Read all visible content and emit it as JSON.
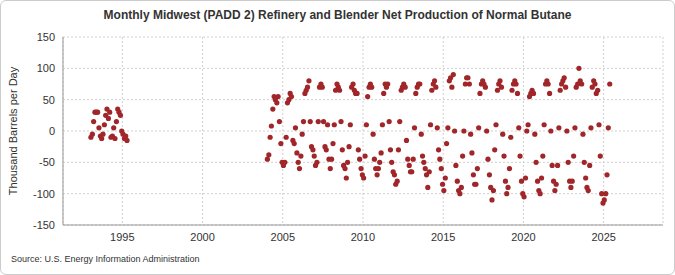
{
  "chart_data": {
    "type": "scatter",
    "title": "Monthly Midwest (PADD 2) Refinery and Blender Net Production of Normal Butane",
    "y_label": "Thousand Barrels per Day",
    "source": "Source: U.S. Energy Information Administration",
    "color": "#a0262a",
    "marker": "circle",
    "grid": true,
    "xlim": [
      1991.3,
      2028.7
    ],
    "xticks": [
      1995,
      2000,
      2005,
      2010,
      2015,
      2020,
      2025
    ],
    "ylim": [
      -150,
      150
    ],
    "yticks": [
      -150,
      -100,
      -50,
      0,
      50,
      100,
      150
    ],
    "x": [
      1993.04,
      1993.13,
      1993.21,
      1993.29,
      1993.38,
      1993.46,
      1993.54,
      1993.63,
      1993.71,
      1993.79,
      1993.88,
      1993.96,
      1994.04,
      1994.13,
      1994.21,
      1994.29,
      1994.38,
      1994.46,
      1994.54,
      1994.63,
      1994.71,
      1994.79,
      1994.88,
      1994.96,
      1995.04,
      1995.13,
      1995.21,
      1995.29,
      2004.04,
      2004.13,
      2004.21,
      2004.29,
      2004.38,
      2004.46,
      2004.54,
      2004.63,
      2004.71,
      2004.79,
      2004.88,
      2004.96,
      2005.04,
      2005.13,
      2005.21,
      2005.29,
      2005.38,
      2005.46,
      2005.54,
      2005.63,
      2005.71,
      2005.79,
      2005.88,
      2005.96,
      2006.04,
      2006.13,
      2006.21,
      2006.29,
      2006.38,
      2006.46,
      2006.54,
      2006.63,
      2006.71,
      2006.79,
      2006.88,
      2006.96,
      2007.04,
      2007.13,
      2007.21,
      2007.29,
      2007.38,
      2007.46,
      2007.54,
      2007.63,
      2007.71,
      2007.79,
      2007.88,
      2007.96,
      2008.04,
      2008.13,
      2008.21,
      2008.29,
      2008.38,
      2008.46,
      2008.54,
      2008.63,
      2008.71,
      2008.79,
      2008.88,
      2008.96,
      2009.04,
      2009.13,
      2009.21,
      2009.29,
      2009.38,
      2009.46,
      2009.54,
      2009.63,
      2009.71,
      2009.79,
      2009.88,
      2009.96,
      2010.04,
      2010.13,
      2010.21,
      2010.29,
      2010.38,
      2010.46,
      2010.54,
      2010.63,
      2010.71,
      2010.79,
      2010.88,
      2010.96,
      2011.04,
      2011.13,
      2011.21,
      2011.29,
      2011.38,
      2011.46,
      2011.54,
      2011.63,
      2011.71,
      2011.79,
      2011.88,
      2011.96,
      2012.04,
      2012.13,
      2012.21,
      2012.29,
      2012.38,
      2012.46,
      2012.54,
      2012.63,
      2012.71,
      2012.79,
      2012.88,
      2012.96,
      2013.04,
      2013.13,
      2013.21,
      2013.29,
      2013.38,
      2013.46,
      2013.54,
      2013.63,
      2013.71,
      2013.79,
      2013.88,
      2013.96,
      2014.04,
      2014.13,
      2014.21,
      2014.29,
      2014.38,
      2014.46,
      2014.54,
      2014.63,
      2014.71,
      2014.79,
      2014.88,
      2014.96,
      2015.04,
      2015.13,
      2015.21,
      2015.29,
      2015.38,
      2015.46,
      2015.54,
      2015.63,
      2015.71,
      2015.79,
      2015.88,
      2015.96,
      2016.04,
      2016.13,
      2016.21,
      2016.29,
      2016.38,
      2016.46,
      2016.54,
      2016.63,
      2016.71,
      2016.79,
      2016.88,
      2016.96,
      2017.04,
      2017.13,
      2017.21,
      2017.29,
      2017.38,
      2017.46,
      2017.54,
      2017.63,
      2017.71,
      2017.79,
      2017.88,
      2017.96,
      2018.04,
      2018.13,
      2018.21,
      2018.29,
      2018.38,
      2018.46,
      2018.54,
      2018.63,
      2018.71,
      2018.79,
      2018.88,
      2018.96,
      2019.04,
      2019.13,
      2019.21,
      2019.29,
      2019.38,
      2019.46,
      2019.54,
      2019.63,
      2019.71,
      2019.79,
      2019.88,
      2019.96,
      2020.04,
      2020.13,
      2020.21,
      2020.29,
      2020.38,
      2020.46,
      2020.54,
      2020.63,
      2020.71,
      2020.79,
      2020.88,
      2020.96,
      2021.04,
      2021.13,
      2021.21,
      2021.29,
      2021.38,
      2021.46,
      2021.54,
      2021.63,
      2021.71,
      2021.79,
      2021.88,
      2021.96,
      2022.04,
      2022.13,
      2022.21,
      2022.29,
      2022.38,
      2022.46,
      2022.54,
      2022.63,
      2022.71,
      2022.79,
      2022.88,
      2022.96,
      2023.04,
      2023.13,
      2023.21,
      2023.29,
      2023.38,
      2023.46,
      2023.54,
      2023.63,
      2023.71,
      2023.79,
      2023.88,
      2023.96,
      2024.04,
      2024.13,
      2024.21,
      2024.29,
      2024.38,
      2024.46,
      2024.54,
      2024.63,
      2024.71,
      2024.79,
      2024.88,
      2024.96,
      2025.04,
      2025.13,
      2025.21,
      2025.29,
      2025.38
    ],
    "values": [
      -10,
      -5,
      15,
      30,
      30,
      30,
      5,
      -8,
      -12,
      -5,
      10,
      25,
      35,
      20,
      30,
      -10,
      -8,
      5,
      -12,
      15,
      35,
      30,
      25,
      0,
      -5,
      -12,
      -8,
      -15,
      -45,
      -38,
      -10,
      8,
      35,
      55,
      50,
      45,
      55,
      15,
      -20,
      -50,
      -55,
      -50,
      -10,
      45,
      50,
      60,
      55,
      -15,
      -20,
      5,
      -35,
      -50,
      -60,
      -40,
      -5,
      15,
      60,
      65,
      70,
      80,
      15,
      -25,
      -30,
      -40,
      -55,
      -50,
      15,
      70,
      75,
      70,
      15,
      -25,
      -30,
      10,
      -45,
      -60,
      -45,
      -20,
      10,
      65,
      75,
      70,
      65,
      15,
      -30,
      -55,
      -60,
      -75,
      -50,
      -25,
      10,
      70,
      75,
      65,
      60,
      60,
      -30,
      -45,
      -60,
      -70,
      -75,
      -40,
      10,
      55,
      70,
      75,
      70,
      -5,
      -45,
      -60,
      -70,
      -60,
      -50,
      -35,
      10,
      60,
      75,
      70,
      75,
      15,
      -30,
      -50,
      -65,
      -70,
      -85,
      -80,
      -30,
      15,
      65,
      70,
      75,
      70,
      -15,
      -45,
      -55,
      -65,
      -65,
      -45,
      5,
      60,
      70,
      75,
      75,
      -5,
      -40,
      -50,
      -60,
      -70,
      -90,
      -65,
      10,
      65,
      75,
      80,
      70,
      5,
      -30,
      -45,
      -60,
      -85,
      -95,
      -75,
      -20,
      5,
      80,
      85,
      70,
      90,
      0,
      -55,
      -80,
      -95,
      -100,
      -90,
      -40,
      0,
      75,
      85,
      85,
      75,
      -5,
      -35,
      -70,
      -85,
      -85,
      -60,
      5,
      60,
      75,
      80,
      75,
      70,
      0,
      -45,
      -70,
      -90,
      -110,
      -95,
      -30,
      10,
      65,
      75,
      80,
      70,
      -5,
      -40,
      -80,
      -100,
      -90,
      -60,
      -10,
      65,
      75,
      80,
      75,
      60,
      5,
      -40,
      -80,
      -100,
      -105,
      -75,
      0,
      10,
      55,
      60,
      65,
      60,
      -5,
      -50,
      -80,
      -95,
      -100,
      -75,
      -40,
      10,
      75,
      80,
      75,
      60,
      0,
      -55,
      -80,
      -95,
      -85,
      -55,
      5,
      65,
      75,
      80,
      85,
      70,
      0,
      -50,
      -80,
      -90,
      -80,
      -40,
      5,
      70,
      75,
      100,
      80,
      75,
      -5,
      -50,
      -75,
      -90,
      -95,
      -55,
      5,
      70,
      80,
      75,
      60,
      65,
      10,
      -40,
      -100,
      -115,
      -110,
      -100,
      -70,
      5,
      75
    ]
  }
}
